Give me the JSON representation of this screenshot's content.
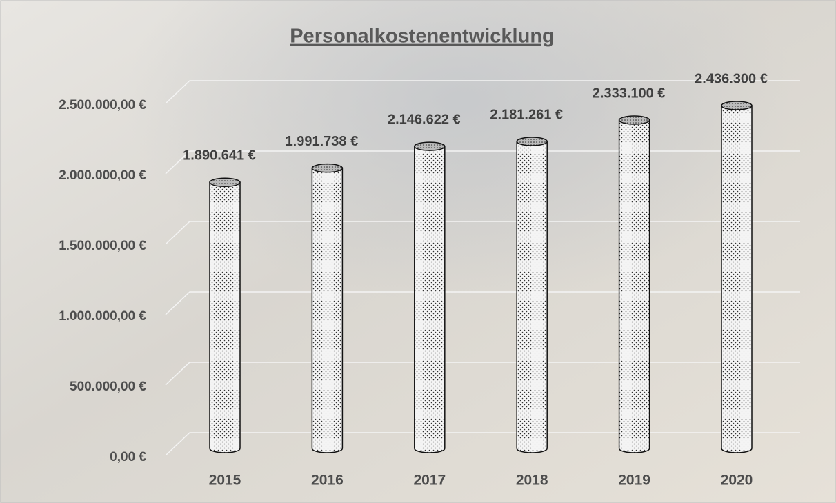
{
  "chart_data": {
    "type": "bar",
    "title": "Personalkostenentwicklung",
    "categories": [
      "2015",
      "2016",
      "2017",
      "2018",
      "2019",
      "2020"
    ],
    "values": [
      1890641,
      1991738,
      2146622,
      2181261,
      2333100,
      2436300
    ],
    "value_labels": [
      "1.890.641 €",
      "1.991.738 €",
      "2.146.622 €",
      "2.181.261 €",
      "2.333.100 €",
      "2.436.300 €"
    ],
    "color": "#f2f2f2",
    "ylim": [
      0,
      2500000
    ],
    "yticks": [
      {
        "value": 0,
        "label": "0,00 €"
      },
      {
        "value": 500000,
        "label": "500.000,00 €"
      },
      {
        "value": 1000000,
        "label": "1.000.000,00 €"
      },
      {
        "value": 1500000,
        "label": "1.500.000,00 €"
      },
      {
        "value": 2000000,
        "label": "2.000.000,00 €"
      },
      {
        "value": 2500000,
        "label": "2.500.000,00 €"
      }
    ],
    "grid": true
  }
}
